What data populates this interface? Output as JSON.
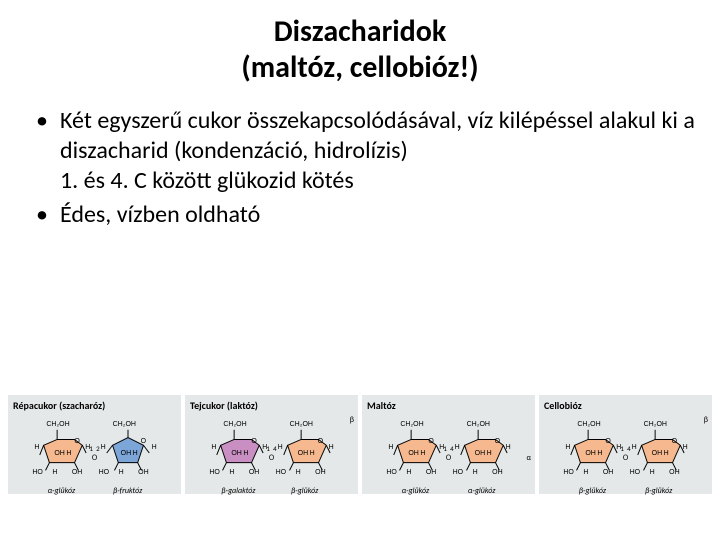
{
  "title_line1": "Diszacharidok",
  "title_line2": "(maltóz, cellobióz!)",
  "bullets": [
    "Két egyszerű cukor összekapcsolódásával, víz kilépéssel alakul ki a diszacharid (kondenzáció, hidrolízis)\n1. és 4. C között glükozid kötés",
    "Édes, vízben oldható"
  ],
  "panels": [
    {
      "title": "Répacukor (szacharóz)",
      "sugars": [
        {
          "name": "α-glükóz",
          "fill": "#f6b98f",
          "shape": "hex"
        },
        {
          "name": "β-fruktóz",
          "fill": "#7da6d8",
          "shape": "pent"
        }
      ],
      "link_labels": [
        "1",
        "2"
      ]
    },
    {
      "title": "Tejcukor (laktóz)",
      "sugars": [
        {
          "name": "β-galaktóz",
          "fill": "#c98fc3",
          "shape": "hex"
        },
        {
          "name": "β-glükóz",
          "fill": "#f6b98f",
          "shape": "hex"
        }
      ],
      "link_labels": [
        "1",
        "4"
      ],
      "beta_right": "β"
    },
    {
      "title": "Maltóz",
      "sugars": [
        {
          "name": "α-glükóz",
          "fill": "#f6b98f",
          "shape": "hex"
        },
        {
          "name": "α-glükóz",
          "fill": "#f6b98f",
          "shape": "hex"
        }
      ],
      "link_labels": [
        "1",
        "4"
      ],
      "alpha_right": "α"
    },
    {
      "title": "Cellobióz",
      "sugars": [
        {
          "name": "β-glükóz",
          "fill": "#f6b98f",
          "shape": "hex"
        },
        {
          "name": "β-glükóz",
          "fill": "#f6b98f",
          "shape": "hex"
        }
      ],
      "link_labels": [
        "1",
        "4"
      ],
      "beta_right": "β"
    }
  ],
  "atom_labels": {
    "ch2oh": "CH₂OH",
    "h": "H",
    "oh": "OH",
    "ho": "HO",
    "o": "O"
  },
  "colors": {
    "panel_bg": "#e5e8e8",
    "stroke": "#000000"
  }
}
